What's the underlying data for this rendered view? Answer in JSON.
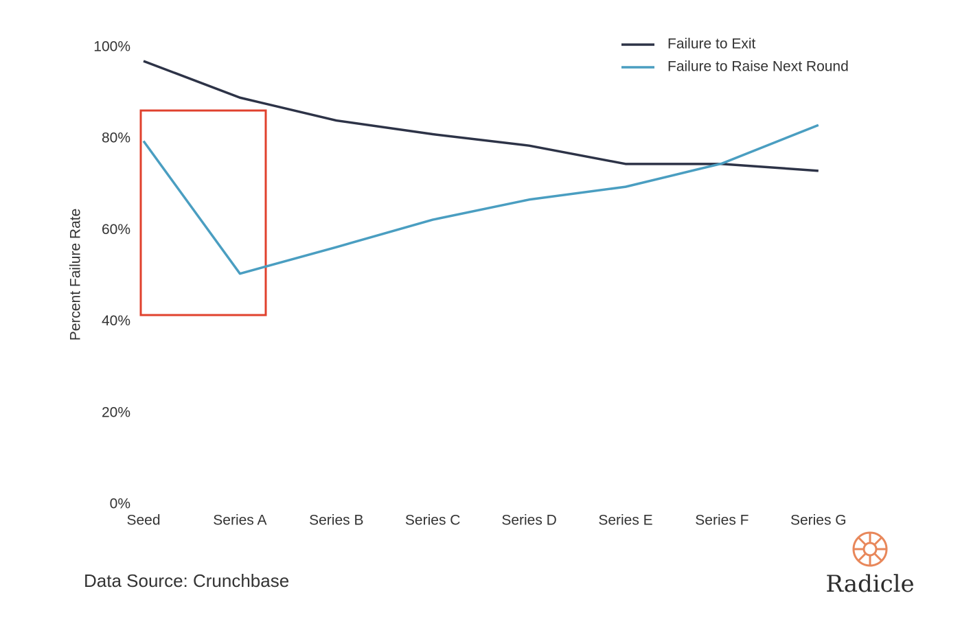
{
  "chart_data": {
    "type": "line",
    "y_label": "Percent Failure Rate",
    "categories": [
      "Seed",
      "Series A",
      "Series B",
      "Series C",
      "Series D",
      "Series E",
      "Series F",
      "Series G"
    ],
    "series": [
      {
        "name": "Failure to Exit",
        "color": "#2d3347",
        "values": [
          97,
          89,
          84,
          81,
          78.5,
          74.5,
          74.5,
          73
        ]
      },
      {
        "name": "Failure to Raise Next Round",
        "color": "#4a9ec1",
        "values": [
          79.5,
          50.5,
          56.3,
          62.3,
          66.7,
          69.5,
          74.6,
          83
        ]
      }
    ],
    "ylim": [
      0,
      100
    ],
    "yticks": [
      {
        "value": 0,
        "label": "0%"
      },
      {
        "value": 20,
        "label": "20%"
      },
      {
        "value": 40,
        "label": "40%"
      },
      {
        "value": 60,
        "label": "60%"
      },
      {
        "value": 80,
        "label": "80%"
      },
      {
        "value": 100,
        "label": "100%"
      }
    ],
    "grid": false,
    "legend": "upper right"
  },
  "footer": {
    "source": "Data Source: Crunchbase",
    "logo": "Radicle"
  }
}
